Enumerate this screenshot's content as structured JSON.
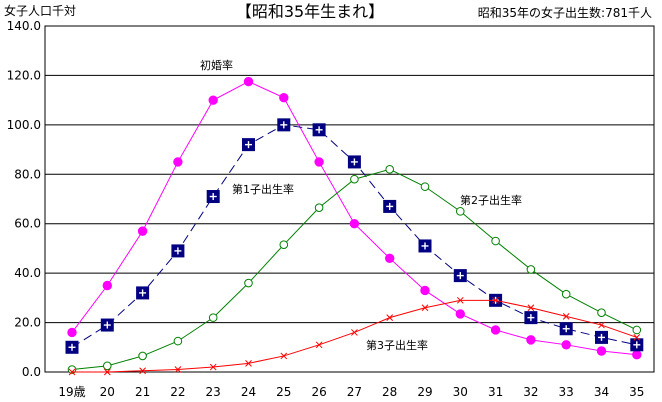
{
  "chart_data": {
    "type": "line",
    "title": "【昭和35年生まれ】",
    "subtitle": "昭和35年の女子出生数:781千人",
    "ylabel": "女子人口千対",
    "xlabel": "",
    "categories": [
      "19歳",
      "20",
      "21",
      "22",
      "23",
      "24",
      "25",
      "26",
      "27",
      "28",
      "29",
      "30",
      "31",
      "32",
      "33",
      "34",
      "35"
    ],
    "ylim": [
      0,
      140
    ],
    "yticks": [
      "0.0",
      "20.0",
      "40.0",
      "60.0",
      "80.0",
      "100.0",
      "120.0",
      "140.0"
    ],
    "grid": "horizontal",
    "legend": "none",
    "series": [
      {
        "name": "初婚率",
        "color": "#ff00ff",
        "marker": "filled-circle",
        "dash": "solid",
        "values": [
          16,
          35,
          57,
          85,
          110,
          117.5,
          111,
          85,
          60,
          46,
          33,
          23.5,
          17,
          13,
          11,
          8.5,
          7
        ]
      },
      {
        "name": "第1子出生率",
        "color": "#000080",
        "marker": "square-plus",
        "dash": "dashed",
        "values": [
          10,
          19,
          32,
          49,
          71,
          92,
          100,
          98,
          85,
          67,
          51,
          39,
          29,
          22,
          17.5,
          14,
          11
        ]
      },
      {
        "name": "第2子出生率",
        "color": "#008000",
        "marker": "open-circle",
        "dash": "solid",
        "values": [
          1,
          2.5,
          6.5,
          12.5,
          22,
          36,
          51.5,
          66.5,
          78,
          82,
          75,
          65,
          53,
          41.5,
          31.5,
          24,
          17
        ]
      },
      {
        "name": "第3子出生率",
        "color": "#ff0000",
        "marker": "x",
        "dash": "solid",
        "values": [
          0,
          0,
          0.5,
          1,
          2,
          3.5,
          6.5,
          11,
          16,
          22,
          26,
          29,
          29,
          26,
          22.5,
          19,
          14
        ]
      }
    ],
    "annotations": [
      {
        "text": "初婚率",
        "series": 0
      },
      {
        "text": "第1子出生率",
        "series": 1
      },
      {
        "text": "第2子出生率",
        "series": 2
      },
      {
        "text": "第3子出生率",
        "series": 3
      }
    ]
  }
}
